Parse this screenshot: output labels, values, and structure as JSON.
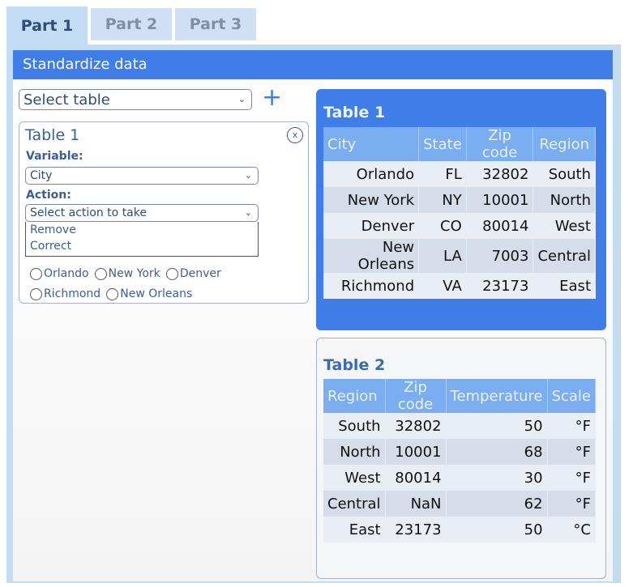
{
  "tabs": [
    {
      "label": "Part 1",
      "active": true
    },
    {
      "label": "Part 2"
    },
    {
      "label": "Part 3"
    }
  ],
  "header": {
    "title": "Standardize data"
  },
  "select_table": {
    "value": "Select table",
    "add_icon": "plus-icon"
  },
  "card": {
    "title": "Table 1",
    "close_icon": "x-circle-icon",
    "variable_label": "Variable:",
    "variable_value": "City",
    "action_label": "Action:",
    "action_value": "Select action to take",
    "action_options": [
      "Remove",
      "Correct"
    ],
    "radios": [
      "Orlando",
      "New York",
      "Denver",
      "Richmond",
      "New Orleans"
    ]
  },
  "table1": {
    "title": "Table 1",
    "columns": [
      "City",
      "State",
      "Zip code",
      "Region"
    ],
    "rows": [
      [
        "Orlando",
        "FL",
        "32802",
        "South"
      ],
      [
        "New York",
        "NY",
        "10001",
        "North"
      ],
      [
        "Denver",
        "CO",
        "80014",
        "West"
      ],
      [
        "New Orleans",
        "LA",
        "7003",
        "Central"
      ],
      [
        "Richmond",
        "VA",
        "23173",
        "East"
      ]
    ]
  },
  "table2": {
    "title": "Table 2",
    "columns": [
      "Region",
      "Zip code",
      "Temperature",
      "Scale"
    ],
    "rows": [
      [
        "South",
        "32802",
        "50",
        "°F"
      ],
      [
        "North",
        "10001",
        "68",
        "°F"
      ],
      [
        "West",
        "80014",
        "30",
        "°F"
      ],
      [
        "Central",
        "NaN",
        "62",
        "°F"
      ],
      [
        "East",
        "23173",
        "50",
        "°C"
      ]
    ]
  },
  "colors": {
    "accent": "#3f7ee8",
    "tab_bg": "#c4dbf4",
    "table_header": "#7aaef0"
  }
}
